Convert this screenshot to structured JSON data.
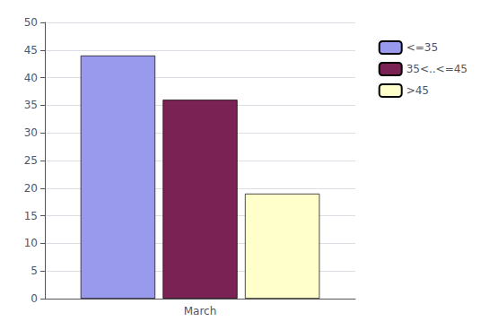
{
  "chart_data": {
    "type": "bar",
    "categories": [
      "March"
    ],
    "series": [
      {
        "name": "<=35",
        "values": [
          44
        ],
        "color": "#9999ee"
      },
      {
        "name": "35<..<=45",
        "values": [
          36
        ],
        "color": "#7b2255"
      },
      {
        "name": ">45",
        "values": [
          19
        ],
        "color": "#ffffcc"
      }
    ],
    "ylim": [
      0,
      50
    ],
    "yticks": [
      0,
      5,
      10,
      15,
      20,
      25,
      30,
      35,
      40,
      45,
      50
    ],
    "grid": true,
    "legend": "right"
  }
}
